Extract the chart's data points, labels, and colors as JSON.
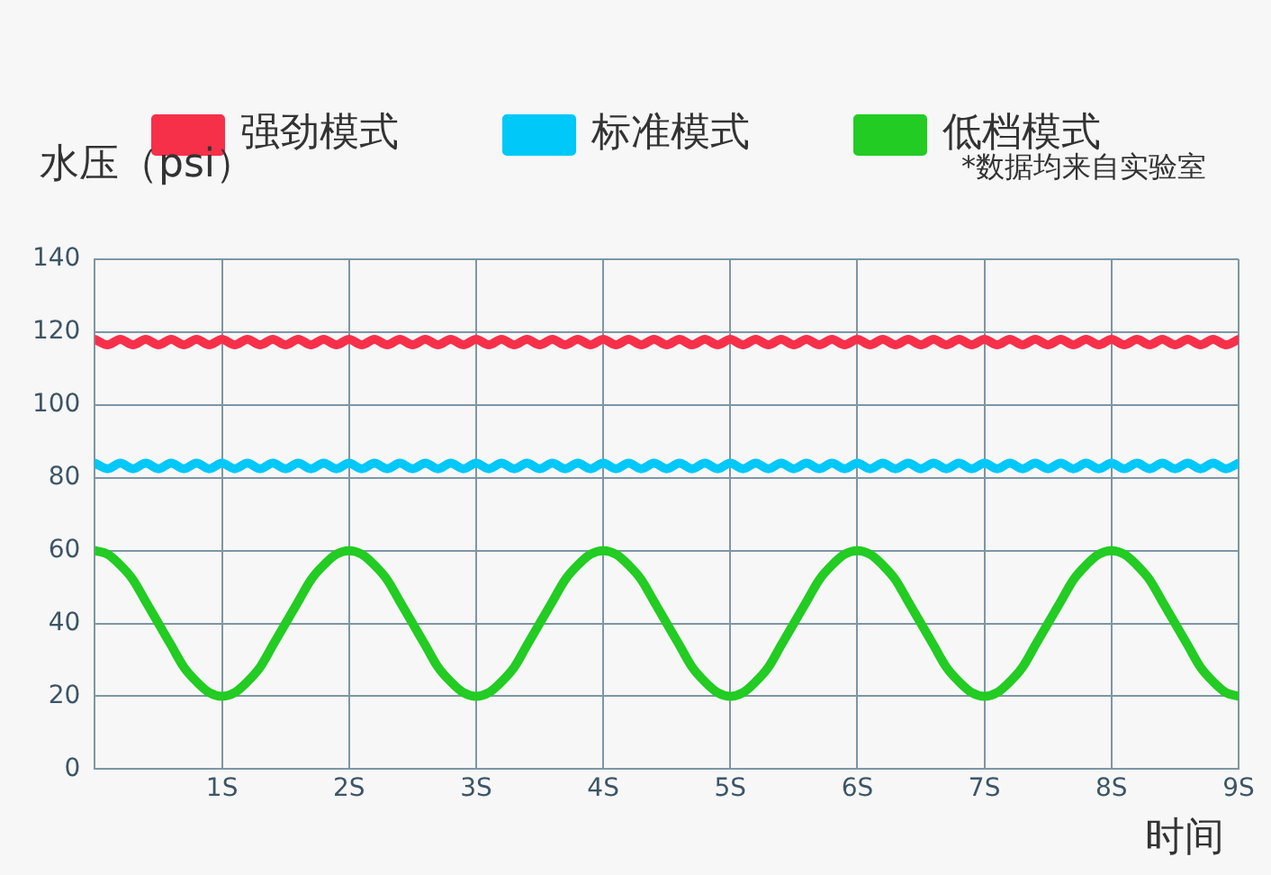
{
  "chart_data": {
    "type": "line",
    "ylabel": "水压（psi）",
    "xlabel": "时间",
    "annotations": [
      "*数据均来自实验室"
    ],
    "x": [
      0,
      0.1,
      0.2,
      0.3,
      0.4,
      0.5,
      0.6,
      0.7,
      0.8,
      0.9,
      1,
      1.1,
      1.2,
      1.3,
      1.4,
      1.5,
      1.6,
      1.7,
      1.8,
      1.9,
      2,
      2.1,
      2.2,
      2.3,
      2.4,
      2.5,
      2.6,
      2.7,
      2.8,
      2.9,
      3,
      3.1,
      3.2,
      3.3,
      3.4,
      3.5,
      3.6,
      3.7,
      3.8,
      3.9,
      4,
      4.1,
      4.2,
      4.3,
      4.4,
      4.5,
      4.6,
      4.7,
      4.8,
      4.9,
      5,
      5.1,
      5.2,
      5.3,
      5.4,
      5.5,
      5.6,
      5.7,
      5.8,
      5.9,
      6,
      6.1,
      6.2,
      6.3,
      6.4,
      6.5,
      6.6,
      6.7,
      6.8,
      6.9,
      7,
      7.1,
      7.2,
      7.3,
      7.4,
      7.5,
      7.6,
      7.7,
      7.8,
      7.9,
      8,
      8.1,
      8.2,
      8.3,
      8.4,
      8.5,
      8.6,
      8.7,
      8.8,
      8.9,
      9
    ],
    "series": [
      {
        "name": "强劲模式",
        "color": "#f7304a",
        "values": [
          118,
          116.5,
          118,
          116.5,
          118,
          116.5,
          118,
          116.5,
          118,
          116.5,
          118,
          116.5,
          118,
          116.5,
          118,
          116.5,
          118,
          116.5,
          118,
          116.5,
          118,
          116.5,
          118,
          116.5,
          118,
          116.5,
          118,
          116.5,
          118,
          116.5,
          118,
          116.5,
          118,
          116.5,
          118,
          116.5,
          118,
          116.5,
          118,
          116.5,
          118,
          116.5,
          118,
          116.5,
          118,
          116.5,
          118,
          116.5,
          118,
          116.5,
          118,
          116.5,
          118,
          116.5,
          118,
          116.5,
          118,
          116.5,
          118,
          116.5,
          118,
          116.5,
          118,
          116.5,
          118,
          116.5,
          118,
          116.5,
          118,
          116.5,
          118,
          116.5,
          118,
          116.5,
          118,
          116.5,
          118,
          116.5,
          118,
          116.5,
          118,
          116.5,
          118,
          116.5,
          118,
          116.5,
          118,
          116.5,
          118,
          116.5,
          118
        ]
      },
      {
        "name": "标准模式",
        "color": "#00c8f8",
        "values": [
          84,
          82.5,
          84,
          82.5,
          84,
          82.5,
          84,
          82.5,
          84,
          82.5,
          84,
          82.5,
          84,
          82.5,
          84,
          82.5,
          84,
          82.5,
          84,
          82.5,
          84,
          82.5,
          84,
          82.5,
          84,
          82.5,
          84,
          82.5,
          84,
          82.5,
          84,
          82.5,
          84,
          82.5,
          84,
          82.5,
          84,
          82.5,
          84,
          82.5,
          84,
          82.5,
          84,
          82.5,
          84,
          82.5,
          84,
          82.5,
          84,
          82.5,
          84,
          82.5,
          84,
          82.5,
          84,
          82.5,
          84,
          82.5,
          84,
          82.5,
          84,
          82.5,
          84,
          82.5,
          84,
          82.5,
          84,
          82.5,
          84,
          82.5,
          84,
          82.5,
          84,
          82.5,
          84,
          82.5,
          84,
          82.5,
          84,
          82.5,
          84,
          82.5,
          84,
          82.5,
          84,
          82.5,
          84,
          82.5,
          84,
          82.5,
          84
        ]
      },
      {
        "name": "低档模式",
        "color": "#22cc22",
        "values": [
          60,
          59,
          56,
          52,
          46,
          40,
          34,
          28,
          24,
          21,
          20,
          21,
          24,
          28,
          34,
          40,
          46,
          52,
          56,
          59,
          60,
          59,
          56,
          52,
          46,
          40,
          34,
          28,
          24,
          21,
          20,
          21,
          24,
          28,
          34,
          40,
          46,
          52,
          56,
          59,
          60,
          59,
          56,
          52,
          46,
          40,
          34,
          28,
          24,
          21,
          20,
          21,
          24,
          28,
          34,
          40,
          46,
          52,
          56,
          59,
          60,
          59,
          56,
          52,
          46,
          40,
          34,
          28,
          24,
          21,
          20,
          21,
          24,
          28,
          34,
          40,
          46,
          52,
          56,
          59,
          60,
          59,
          56,
          52,
          46,
          40,
          34,
          28,
          24,
          21,
          20
        ]
      }
    ],
    "xlim": [
      0,
      9
    ],
    "xticks": [
      {
        "value": 0,
        "label": null
      },
      {
        "value": 1,
        "label": "1S"
      },
      {
        "value": 2,
        "label": "2S"
      },
      {
        "value": 3,
        "label": "3S"
      },
      {
        "value": 4,
        "label": "4S"
      },
      {
        "value": 5,
        "label": "5S"
      },
      {
        "value": 6,
        "label": "6S"
      },
      {
        "value": 7,
        "label": "7S"
      },
      {
        "value": 8,
        "label": "8S"
      },
      {
        "value": 9,
        "label": "9S"
      }
    ],
    "ylim": [
      0,
      140
    ],
    "yticks": [
      0,
      20,
      40,
      60,
      80,
      100,
      120,
      140
    ],
    "grid": true,
    "legend": "top",
    "line_style": "solid"
  }
}
